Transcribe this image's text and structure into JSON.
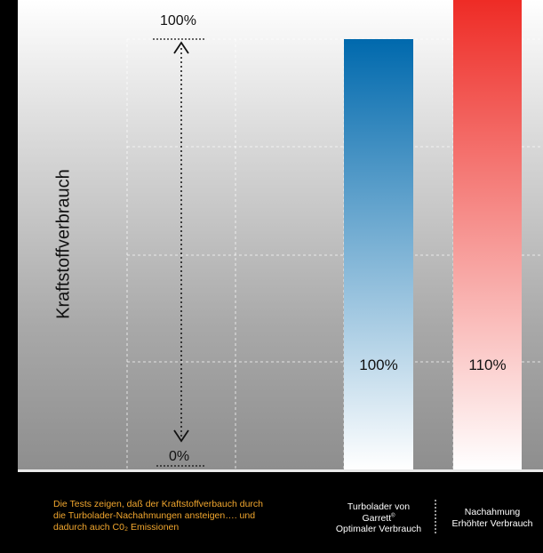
{
  "chart_data": {
    "type": "bar",
    "ylabel": "Kraftstoffverbrauch",
    "ylim": [
      0,
      100
    ],
    "yticks": [
      "100%",
      "0%"
    ],
    "categories": [
      {
        "line1": "Turbolader von",
        "line2": "Garrett",
        "mark": "®",
        "line3": "Optimaler Verbrauch"
      },
      {
        "line1": "Nachahmung",
        "line2": "Erhöhter Verbrauch"
      }
    ],
    "values": [
      100,
      110
    ],
    "value_labels": [
      "100%",
      "110%"
    ],
    "colors": {
      "bar1_top": "#0069ad",
      "bar1_bottom": "#ffffff",
      "bar2_top": "#ee2a24",
      "bar2_bottom": "#ffffff"
    },
    "grid": true
  },
  "caption": {
    "line1": "Die Tests zeigen, daß der Kraftstoffverbauch durch",
    "line2": "die Turbolader-Nachahmungen ansteigen…. und",
    "line3": "dadurch auch C0₂ Emissionen"
  }
}
